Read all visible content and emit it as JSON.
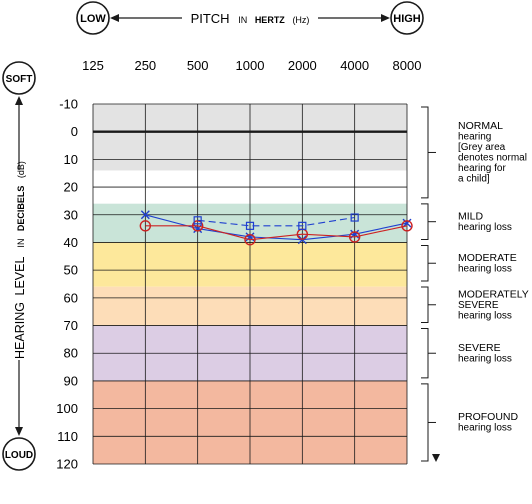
{
  "header": {
    "low_label": "LOW",
    "high_label": "HIGH",
    "pitch_text": "PITCH",
    "in_text": "IN",
    "hertz_text": "HERTZ",
    "unit_text": "(Hz)"
  },
  "side": {
    "soft_label": "SOFT",
    "loud_label": "LOUD",
    "hearing_text": "HEARING",
    "level_text": "LEVEL",
    "in_text": "IN",
    "decibels_text": "DECIBELS",
    "unit_text": "(dB)"
  },
  "chart_data": {
    "type": "line",
    "x": [
      125,
      250,
      500,
      1000,
      2000,
      4000,
      8000
    ],
    "x_scale": "log2",
    "x_tick_labels": [
      "125",
      "250",
      "500",
      "1000",
      "2000",
      "4000",
      "8000"
    ],
    "y_ticks": [
      -10,
      0,
      10,
      20,
      30,
      40,
      50,
      60,
      70,
      80,
      90,
      100,
      110,
      120
    ],
    "y_tick_labels": [
      "-10",
      "0",
      "10",
      "20",
      "30",
      "40",
      "50",
      "60",
      "70",
      "80",
      "90",
      "100",
      "110",
      "120"
    ],
    "ylim": [
      -10,
      120
    ],
    "y_inverted": true,
    "grid": true,
    "bands": [
      {
        "from": -10,
        "to": 14,
        "color": "#e3e3e3"
      },
      {
        "from": 26,
        "to": 40,
        "color": "#c9e4d8"
      },
      {
        "from": 40,
        "to": 56,
        "color": "#fde89b"
      },
      {
        "from": 56,
        "to": 70,
        "color": "#fdddb8"
      },
      {
        "from": 70,
        "to": 90,
        "color": "#dccde4"
      },
      {
        "from": 90,
        "to": 120,
        "color": "#f3b89f"
      }
    ],
    "series": [
      {
        "marker": "x",
        "line_color": "#1f3fcf",
        "dash": "solid",
        "x": [
          250,
          500,
          1000,
          2000,
          4000,
          8000
        ],
        "values": [
          30,
          35,
          38,
          39,
          37,
          33
        ]
      },
      {
        "marker": "o",
        "line_color": "#cc2222",
        "dash": "solid",
        "x": [
          250,
          500,
          1000,
          2000,
          4000,
          8000
        ],
        "values": [
          34,
          34,
          39,
          37,
          38,
          34
        ]
      },
      {
        "marker": "square",
        "line_color": "#1f3fcf",
        "dash": "dashed",
        "x": [
          500,
          1000,
          2000,
          4000
        ],
        "values": [
          32,
          34,
          34,
          31
        ]
      }
    ],
    "categories": [
      {
        "lines": [
          "NORMAL",
          "hearing",
          "[Grey area",
          "denotes normal",
          "hearing for",
          "a child]"
        ],
        "from": -10,
        "to": 25
      },
      {
        "lines": [
          "MILD",
          "hearing loss"
        ],
        "from": 25,
        "to": 40
      },
      {
        "lines": [
          "MODERATE",
          "hearing loss"
        ],
        "from": 40,
        "to": 55
      },
      {
        "lines": [
          "MODERATELY",
          "SEVERE",
          "hearing loss"
        ],
        "from": 55,
        "to": 70
      },
      {
        "lines": [
          "SEVERE",
          "hearing loss"
        ],
        "from": 70,
        "to": 90
      },
      {
        "lines": [
          "PROFOUND",
          "hearing loss"
        ],
        "from": 90,
        "to": 120
      }
    ],
    "colors": {
      "axis": "#1a1a1a",
      "x_marker": "#1f3fcf",
      "o_marker": "#cc2222",
      "square_marker": "#1f3fcf"
    }
  }
}
